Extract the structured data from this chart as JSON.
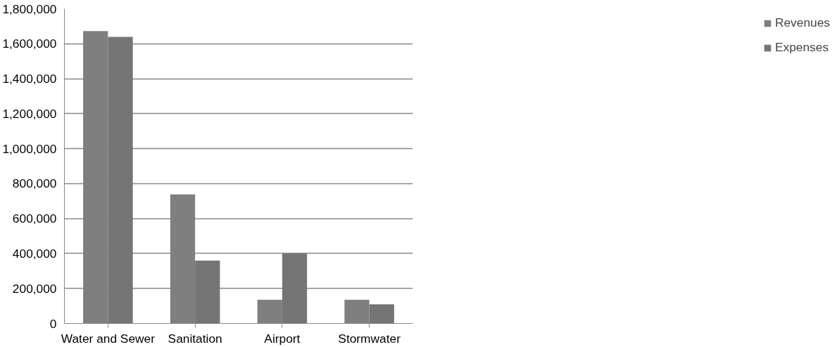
{
  "chart_data": {
    "type": "bar",
    "categories": [
      "Water and Sewer",
      "Sanitation",
      "Airport",
      "Stormwater"
    ],
    "series": [
      {
        "name": "Revenues",
        "color": "#7f7f7f",
        "values": [
          1672000,
          738000,
          136000,
          136000
        ]
      },
      {
        "name": "Expenses",
        "color": "#757575",
        "values": [
          1639000,
          360000,
          400000,
          109000
        ]
      }
    ],
    "ylim": [
      0,
      1800000
    ],
    "yticks": [
      {
        "value": 0,
        "label": "0"
      },
      {
        "value": 200000,
        "label": "200,000"
      },
      {
        "value": 400000,
        "label": "400,000"
      },
      {
        "value": 600000,
        "label": "600,000"
      },
      {
        "value": 800000,
        "label": "800,000"
      },
      {
        "value": 1000000,
        "label": "1,000,000"
      },
      {
        "value": 1200000,
        "label": "1,200,000"
      },
      {
        "value": 1400000,
        "label": "1,400,000"
      },
      {
        "value": 1600000,
        "label": "1,600,000"
      },
      {
        "value": 1800000,
        "label": "1,800,000"
      }
    ],
    "grid": "y",
    "legend": "right"
  }
}
